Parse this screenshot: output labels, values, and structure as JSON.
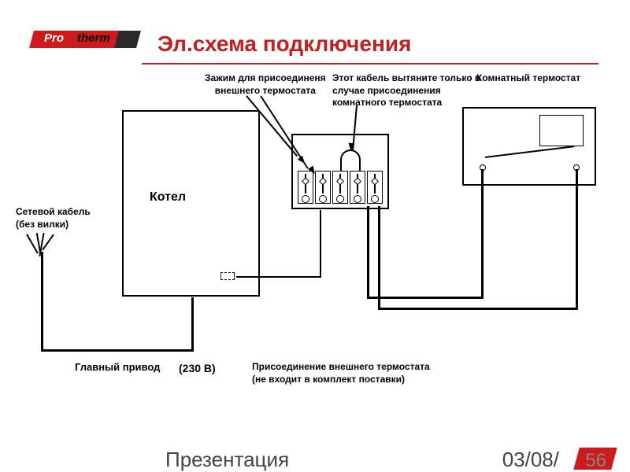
{
  "logo": {
    "text1": "Pro",
    "text2": "therm"
  },
  "title": {
    "text": "Эл.схема подключения",
    "color": "#c02020",
    "fontsize": 28
  },
  "divider_color": "#c02020",
  "labels": {
    "zajim": "Зажим для присоединеня\nвнешнего термостата",
    "cable_remove": "Этот кабель вытяните только в\nслучае присоединения\nкомнатного термостата",
    "room_thermo": "Комнатный термостат",
    "mains": "Сетевой кабель\n(без вилки)",
    "boiler": "Котел",
    "main_drive": "Главный привод",
    "voltage": "(230 В)",
    "ext_connect": "Присоединение внешнего термостата\n(не входит в комплект поставки)"
  },
  "footer": {
    "presentation": "Презентация",
    "date": "03/08/",
    "page": "56"
  },
  "colors": {
    "red": "#ce1a1a",
    "title_red": "#c02020",
    "black": "#000000",
    "grey": "#888888"
  }
}
